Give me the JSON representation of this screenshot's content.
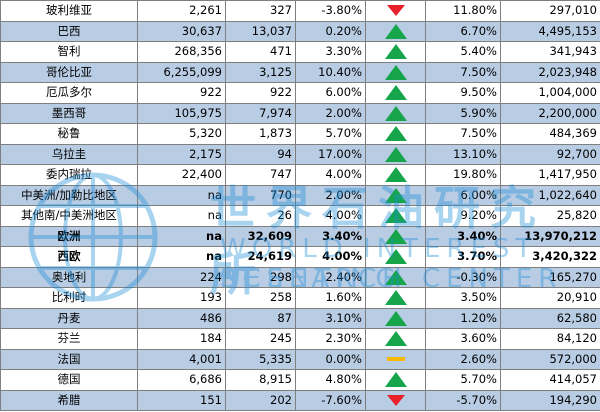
{
  "rows": [
    {
      "name": "玻利维亚",
      "v1": "2,261",
      "v2": "327",
      "pct1": "-3.80%",
      "trend": "down",
      "pct2": "11.80%",
      "v3": "297,010",
      "bold": false
    },
    {
      "name": "巴西",
      "v1": "30,637",
      "v2": "13,037",
      "pct1": "0.20%",
      "trend": "up",
      "pct2": "6.70%",
      "v3": "4,495,153",
      "bold": false
    },
    {
      "name": "智利",
      "v1": "268,356",
      "v2": "471",
      "pct1": "3.30%",
      "trend": "up",
      "pct2": "5.40%",
      "v3": "341,943",
      "bold": false
    },
    {
      "name": "哥伦比亚",
      "v1": "6,255,099",
      "v2": "3,125",
      "pct1": "10.40%",
      "trend": "up",
      "pct2": "7.50%",
      "v3": "2,023,948",
      "bold": false
    },
    {
      "name": "厄瓜多尔",
      "v1": "922",
      "v2": "922",
      "pct1": "6.00%",
      "trend": "up",
      "pct2": "9.50%",
      "v3": "1,004,000",
      "bold": false
    },
    {
      "name": "墨西哥",
      "v1": "105,975",
      "v2": "7,974",
      "pct1": "2.00%",
      "trend": "up",
      "pct2": "5.90%",
      "v3": "2,200,000",
      "bold": false
    },
    {
      "name": "秘鲁",
      "v1": "5,320",
      "v2": "1,873",
      "pct1": "5.70%",
      "trend": "up",
      "pct2": "7.50%",
      "v3": "484,369",
      "bold": false
    },
    {
      "name": "乌拉圭",
      "v1": "2,175",
      "v2": "94",
      "pct1": "17.00%",
      "trend": "up",
      "pct2": "13.10%",
      "v3": "92,700",
      "bold": false
    },
    {
      "name": "委内瑞拉",
      "v1": "22,400",
      "v2": "747",
      "pct1": "4.00%",
      "trend": "up",
      "pct2": "19.80%",
      "v3": "1,417,950",
      "bold": false
    },
    {
      "name": "中美洲/加勒比地区",
      "v1": "na",
      "v2": "770",
      "pct1": "2.00%",
      "trend": "up",
      "pct2": "6.00%",
      "v3": "1,022,640",
      "bold": false
    },
    {
      "name": "其他南/中美洲地区",
      "v1": "na",
      "v2": "26",
      "pct1": "4.00%",
      "trend": "up",
      "pct2": "9.20%",
      "v3": "25,820",
      "bold": false
    },
    {
      "name": "欧洲",
      "v1": "na",
      "v2": "32,609",
      "pct1": "3.40%",
      "trend": "up",
      "pct2": "3.40%",
      "v3": "13,970,212",
      "bold": true
    },
    {
      "name": "西欧",
      "v1": "na",
      "v2": "24,619",
      "pct1": "4.00%",
      "trend": "up",
      "pct2": "3.70%",
      "v3": "3,420,322",
      "bold": true
    },
    {
      "name": "奥地利",
      "v1": "224",
      "v2": "298",
      "pct1": "2.40%",
      "trend": "up",
      "pct2": "-0.30%",
      "v3": "165,270",
      "bold": false
    },
    {
      "name": "比利时",
      "v1": "193",
      "v2": "258",
      "pct1": "1.60%",
      "trend": "up",
      "pct2": "3.50%",
      "v3": "20,910",
      "bold": false
    },
    {
      "name": "丹麦",
      "v1": "486",
      "v2": "87",
      "pct1": "3.10%",
      "trend": "up",
      "pct2": "1.20%",
      "v3": "62,580",
      "bold": false
    },
    {
      "name": "芬兰",
      "v1": "184",
      "v2": "245",
      "pct1": "2.30%",
      "trend": "up",
      "pct2": "3.60%",
      "v3": "84,120",
      "bold": false
    },
    {
      "name": "法国",
      "v1": "4,001",
      "v2": "5,335",
      "pct1": "0.00%",
      "trend": "flat",
      "pct2": "2.60%",
      "v3": "572,000",
      "bold": false
    },
    {
      "name": "德国",
      "v1": "6,686",
      "v2": "8,915",
      "pct1": "4.80%",
      "trend": "up",
      "pct2": "5.70%",
      "v3": "414,057",
      "bold": false
    },
    {
      "name": "希腊",
      "v1": "151",
      "v2": "202",
      "pct1": "-7.60%",
      "trend": "down",
      "pct2": "-5.70%",
      "v3": "194,290",
      "bold": false
    }
  ],
  "watermark": {
    "cn": "世界石油研究所",
    "en1": "WORLD INTEREST SCENTING",
    "en2": "RESEARCH CENTER"
  }
}
